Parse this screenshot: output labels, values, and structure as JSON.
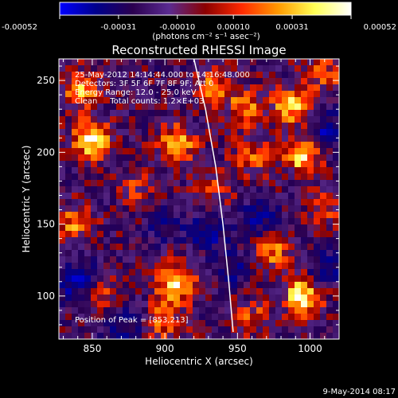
{
  "chart_data": {
    "type": "heatmap",
    "title": "Reconstructed RHESSI Image",
    "xlabel": "Heliocentric X (arcsec)",
    "ylabel": "Heliocentric Y (arcsec)",
    "xlim": [
      827,
      1020
    ],
    "ylim": [
      70,
      265
    ],
    "x_ticks": [
      850,
      900,
      950,
      1000
    ],
    "y_ticks": [
      100,
      150,
      200,
      250
    ],
    "colorbar": {
      "label": "(photons cm⁻² s⁻¹ asec⁻²)",
      "min": -0.00052,
      "max": 0.00052,
      "tick_values": [
        -0.00052,
        -0.00031,
        -0.0001,
        0.0001,
        0.00031,
        0.00052
      ],
      "tick_labels": [
        "-0.00052",
        "-0.00031",
        "-0.00010",
        "0.00010",
        "0.00031",
        "0.00052"
      ],
      "colors": [
        "#0000ff",
        "#00008b",
        "#2b004f",
        "#5a2b91",
        "#8b0000",
        "#ff2a00",
        "#ff9a00",
        "#ffff55",
        "#ffffff"
      ]
    },
    "annotations": [
      "25-May-2012 14:14:44.000 to 14:16:48.000",
      "Detectors: 3F 5F 6F 7F 8F 9F; Att 0",
      "Energy Range: 12.0 - 25.0 keV",
      "Clean     Total counts: 1.2×E+03"
    ],
    "peak_label": "Position of Peak = [853,213]",
    "peak": [
      853,
      213
    ],
    "limb_curve": [
      [
        920,
        265
      ],
      [
        928,
        230
      ],
      [
        935,
        190
      ],
      [
        940,
        150
      ],
      [
        944,
        110
      ],
      [
        947,
        75
      ]
    ],
    "hot_spots": [
      {
        "x": 850,
        "y": 209,
        "v": 0.00052
      },
      {
        "x": 842,
        "y": 243,
        "v": 0.00035
      },
      {
        "x": 908,
        "y": 206,
        "v": 0.0004
      },
      {
        "x": 934,
        "y": 246,
        "v": 0.0003
      },
      {
        "x": 955,
        "y": 230,
        "v": 0.0003
      },
      {
        "x": 987,
        "y": 232,
        "v": 0.00042
      },
      {
        "x": 995,
        "y": 197,
        "v": 0.00045
      },
      {
        "x": 960,
        "y": 196,
        "v": 0.00025
      },
      {
        "x": 1010,
        "y": 255,
        "v": 0.00025
      },
      {
        "x": 838,
        "y": 150,
        "v": 0.0003
      },
      {
        "x": 880,
        "y": 176,
        "v": 0.00018
      },
      {
        "x": 908,
        "y": 110,
        "v": 0.0005
      },
      {
        "x": 900,
        "y": 83,
        "v": 0.0003
      },
      {
        "x": 995,
        "y": 100,
        "v": 0.00052
      },
      {
        "x": 975,
        "y": 130,
        "v": 0.0003
      },
      {
        "x": 1010,
        "y": 160,
        "v": 0.00022
      },
      {
        "x": 935,
        "y": 175,
        "v": 0.00018
      },
      {
        "x": 855,
        "y": 100,
        "v": 0.00022
      },
      {
        "x": 960,
        "y": 85,
        "v": 0.00022
      }
    ],
    "cold_spots": [
      {
        "x": 840,
        "y": 110,
        "v": -0.00035
      },
      {
        "x": 930,
        "y": 145,
        "v": -0.00028
      },
      {
        "x": 965,
        "y": 155,
        "v": -0.00025
      },
      {
        "x": 1012,
        "y": 215,
        "v": -0.00028
      },
      {
        "x": 1010,
        "y": 120,
        "v": -0.00025
      },
      {
        "x": 870,
        "y": 80,
        "v": -0.00025
      },
      {
        "x": 900,
        "y": 150,
        "v": -0.00018
      },
      {
        "x": 948,
        "y": 120,
        "v": -0.0002
      }
    ]
  },
  "footer": {
    "date": "9-May-2014 08:17"
  }
}
